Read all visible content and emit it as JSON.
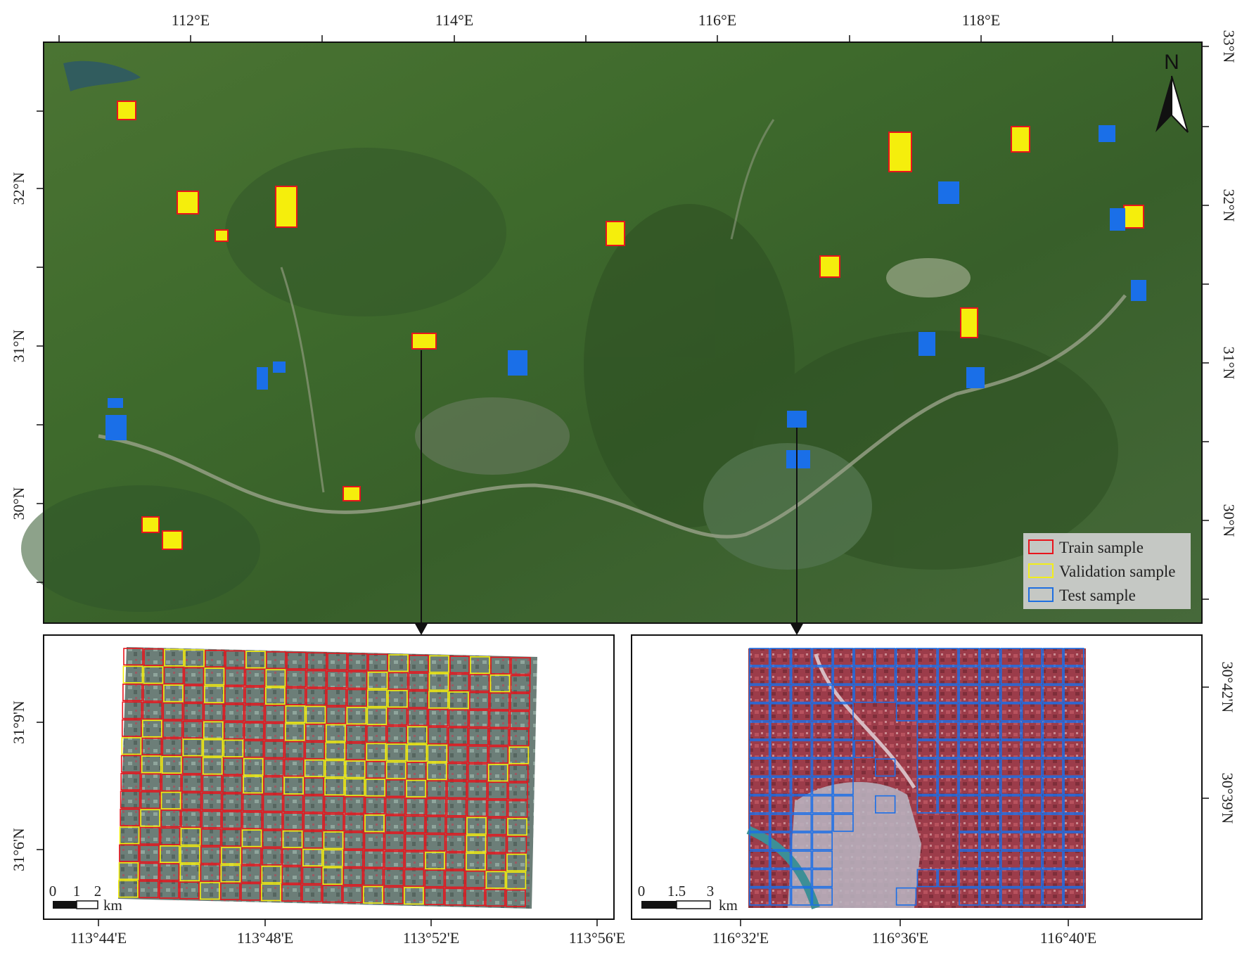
{
  "overview_map": {
    "top_ticks": [
      {
        "label": "112°E",
        "lon": 112
      },
      {
        "label": "114°E",
        "lon": 114
      },
      {
        "label": "116°E",
        "lon": 116
      },
      {
        "label": "118°E",
        "lon": 118
      }
    ],
    "right_ticks": [
      {
        "label": "33°N",
        "lat": 33
      },
      {
        "label": "32°N",
        "lat": 32
      },
      {
        "label": "31°N",
        "lat": 31
      },
      {
        "label": "30°N",
        "lat": 30
      }
    ],
    "left_ticks": [
      {
        "label": "32°N",
        "lat": 32
      },
      {
        "label": "31°N",
        "lat": 31
      },
      {
        "label": "30°N",
        "lat": 30
      }
    ],
    "north_label": "N",
    "north_arrow_icon": "north-arrow-icon",
    "legend": [
      {
        "label": "Train sample",
        "color": "#e8141c"
      },
      {
        "label": "Validation sample",
        "color": "#f2ee1a"
      },
      {
        "label": "Test sample",
        "color": "#1f6fe0"
      }
    ],
    "colors": {
      "train": "#e8141c",
      "validation": "#f5ee0c",
      "test": "#1a6fe8",
      "land": "#3f6a2d"
    }
  },
  "inset_left": {
    "left_ticks": [
      {
        "label": "31°9'N"
      },
      {
        "label": "31°6'N"
      }
    ],
    "bottom_ticks": [
      {
        "label": "113°44'E"
      },
      {
        "label": "113°48'E"
      },
      {
        "label": "113°52'E"
      },
      {
        "label": "113°56'E"
      }
    ],
    "scale_labels": [
      "0",
      "1",
      "2"
    ],
    "scale_unit": "km"
  },
  "inset_right": {
    "right_ticks": [
      {
        "label": "30°42'N"
      },
      {
        "label": "30°39'N"
      }
    ],
    "bottom_ticks": [
      {
        "label": "116°32'E"
      },
      {
        "label": "116°36'E"
      },
      {
        "label": "116°40'E"
      }
    ],
    "scale_labels": [
      "0",
      "1.5",
      "3"
    ],
    "scale_unit": "km"
  }
}
